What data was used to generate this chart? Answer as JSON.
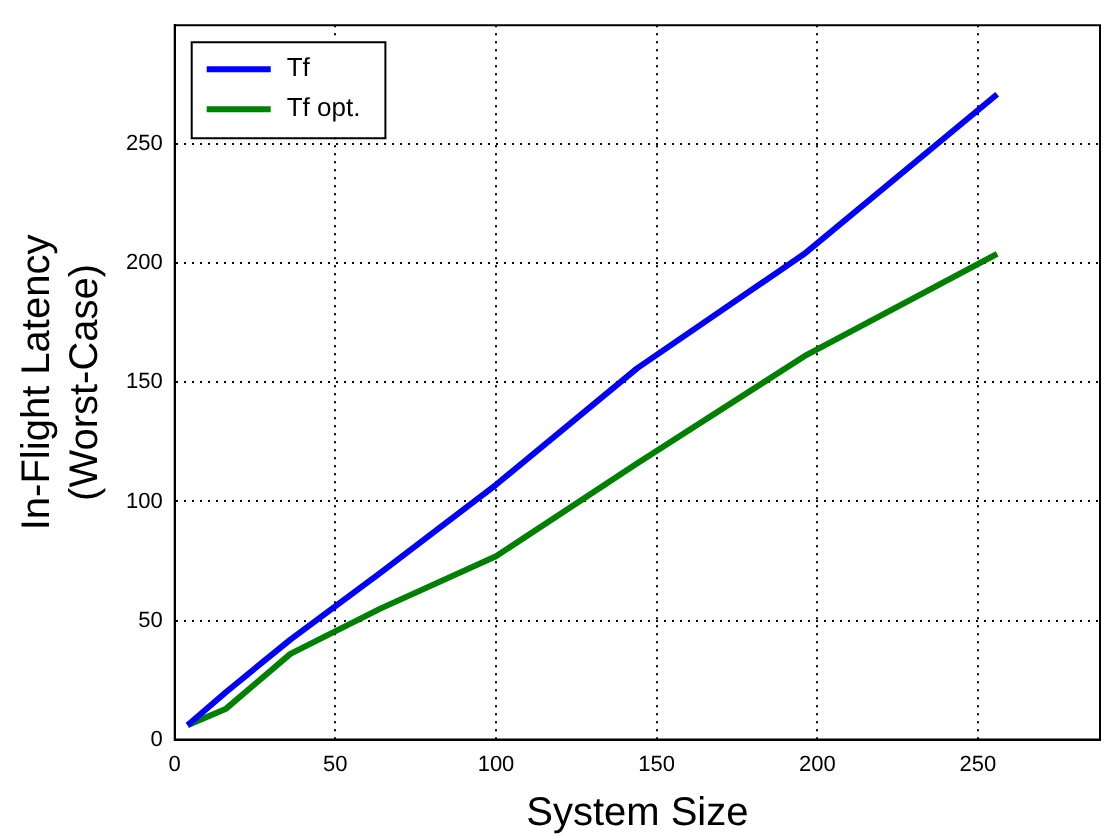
{
  "chart_data": {
    "type": "line",
    "xlabel": "System Size",
    "ylabel": "In-Flight Latency\n(Worst-Case)",
    "x": [
      4,
      16,
      36,
      64,
      100,
      144,
      196,
      256
    ],
    "series": [
      {
        "name": "Tf",
        "color": "#0000ff",
        "values": [
          6,
          20,
          42,
          70,
          107,
          156,
          204,
          271
        ]
      },
      {
        "name": "Tf opt.",
        "color": "#008000",
        "values": [
          6,
          13,
          36,
          55,
          77,
          116,
          161,
          204
        ]
      }
    ],
    "xlim": [
      0,
      288
    ],
    "xticks": [
      0,
      50,
      100,
      150,
      200,
      250
    ],
    "ylim": [
      0,
      300
    ],
    "yticks": [
      0,
      50,
      100,
      150,
      200,
      250
    ],
    "grid": true,
    "legend": "top left",
    "marker": "none",
    "line_style": "solid"
  }
}
